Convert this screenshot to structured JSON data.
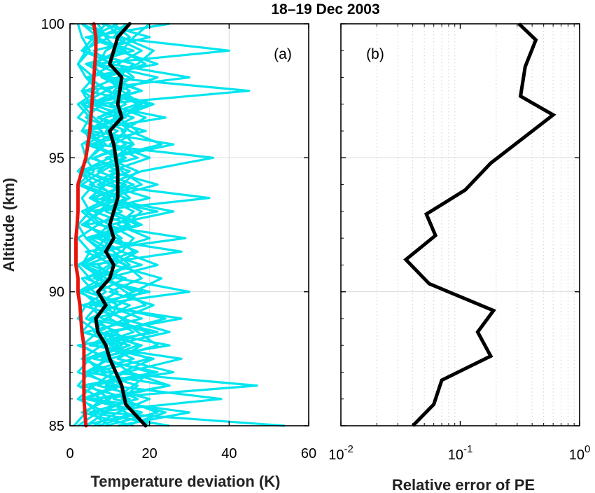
{
  "chart_data": [
    {
      "type": "line",
      "panel_label": "(a)",
      "title": "18–19 Dec 2003",
      "xlabel": "Temperature deviation (K)",
      "ylabel": "Altitude (km)",
      "xlim": [
        0,
        60
      ],
      "ylim": [
        85,
        100
      ],
      "xticks": [
        "0",
        "20",
        "40",
        "60"
      ],
      "yticks": [
        "85",
        "90",
        "95",
        "100"
      ],
      "grid": true,
      "colors": {
        "individual": "#00e5ee",
        "median": "#e8140c",
        "mean": "#000000"
      },
      "individual_profiles": [
        {
          "x": [
            3,
            18,
            6,
            25,
            4,
            10,
            2,
            22,
            8,
            5,
            30,
            12,
            3,
            9,
            4,
            15,
            6,
            20,
            9,
            2,
            14,
            5,
            4,
            12,
            3,
            18,
            8,
            6,
            40,
            10,
            3
          ],
          "y": [
            85,
            85.5,
            86,
            86.5,
            87,
            87.5,
            88,
            88.5,
            89,
            89.5,
            90,
            90.5,
            91,
            91.5,
            92,
            92.5,
            93,
            93.5,
            94,
            94.5,
            95,
            95.5,
            96,
            96.5,
            97,
            97.5,
            98,
            98.5,
            99,
            99.5,
            100
          ]
        },
        {
          "x": [
            54,
            8,
            15,
            3,
            22,
            6,
            12,
            4,
            18,
            9,
            7,
            14,
            5,
            28,
            6,
            10,
            4,
            35,
            8,
            12,
            6,
            16,
            3,
            24,
            7,
            45,
            9,
            5,
            14,
            4,
            25
          ],
          "y": [
            85,
            85.5,
            86,
            86.5,
            87,
            87.5,
            88,
            88.5,
            89,
            89.5,
            90,
            90.5,
            91,
            91.5,
            92,
            92.5,
            93,
            93.5,
            94,
            94.5,
            95,
            95.5,
            96,
            96.5,
            97,
            97.5,
            98,
            98.5,
            99,
            99.5,
            100
          ]
        },
        {
          "x": [
            12,
            30,
            5,
            47,
            9,
            4,
            25,
            7,
            14,
            3,
            20,
            6,
            11,
            4,
            29,
            7,
            13,
            5,
            9,
            18,
            36,
            6,
            12,
            4,
            8,
            3,
            30,
            10,
            6,
            20,
            8
          ],
          "y": [
            85,
            85.5,
            86,
            86.5,
            87,
            87.5,
            88,
            88.5,
            89,
            89.5,
            90,
            90.5,
            91,
            91.5,
            92,
            92.5,
            93,
            93.5,
            94,
            94.5,
            95,
            95.5,
            96,
            96.5,
            97,
            97.5,
            98,
            98.5,
            99,
            99.5,
            100
          ]
        },
        {
          "x": [
            25,
            5,
            38,
            10,
            4,
            16,
            8,
            20,
            5,
            12,
            6,
            3,
            18,
            8,
            10,
            4,
            22,
            6,
            14,
            3,
            10,
            26,
            5,
            9,
            20,
            4,
            12,
            16,
            3,
            10,
            5
          ],
          "y": [
            85,
            85.5,
            86,
            86.5,
            87,
            87.5,
            88,
            88.5,
            89,
            89.5,
            90,
            90.5,
            91,
            91.5,
            92,
            92.5,
            93,
            93.5,
            94,
            94.5,
            95,
            95.5,
            96,
            96.5,
            97,
            97.5,
            98,
            98.5,
            99,
            99.5,
            100
          ]
        },
        {
          "x": [
            6,
            12,
            20,
            7,
            14,
            28,
            5,
            11,
            24,
            8,
            16,
            9,
            4,
            13,
            7,
            18,
            11,
            5,
            16,
            7,
            12,
            5,
            19,
            7,
            14,
            10,
            4,
            22,
            12,
            7,
            15
          ],
          "y": [
            85,
            85.5,
            86,
            86.5,
            87,
            87.5,
            88,
            88.5,
            89,
            89.5,
            90,
            90.5,
            91,
            91.5,
            92,
            92.5,
            93,
            93.5,
            94,
            94.5,
            95,
            95.5,
            96,
            96.5,
            97,
            97.5,
            98,
            98.5,
            99,
            99.5,
            100
          ]
        },
        {
          "x": [
            16,
            3,
            10,
            5,
            26,
            12,
            18,
            6,
            9,
            15,
            4,
            11,
            7,
            16,
            12,
            3,
            8,
            14,
            5,
            12,
            6,
            14,
            9,
            16,
            5,
            12,
            22,
            7,
            9,
            15,
            11
          ],
          "y": [
            85,
            85.5,
            86,
            86.5,
            87,
            87.5,
            88,
            88.5,
            89,
            89.5,
            90,
            90.5,
            91,
            91.5,
            92,
            92.5,
            93,
            93.5,
            94,
            94.5,
            95,
            95.5,
            96,
            96.5,
            97,
            97.5,
            98,
            98.5,
            99,
            99.5,
            100
          ]
        },
        {
          "x": [
            9,
            22,
            13,
            17,
            6,
            20,
            10,
            25,
            13,
            21,
            10,
            18,
            14,
            9,
            20,
            12,
            16,
            9,
            22,
            10,
            20,
            11,
            17,
            12,
            21,
            9,
            16,
            12,
            18,
            11,
            14
          ],
          "y": [
            85,
            85.5,
            86,
            86.5,
            87,
            87.5,
            88,
            88.5,
            89,
            89.5,
            90,
            90.5,
            91,
            91.5,
            92,
            92.5,
            93,
            93.5,
            94,
            94.5,
            95,
            95.5,
            96,
            96.5,
            97,
            97.5,
            98,
            98.5,
            99,
            99.5,
            100
          ]
        },
        {
          "x": [
            2,
            7,
            3,
            12,
            2,
            5,
            15,
            3,
            6,
            10,
            2,
            8,
            3,
            5,
            2,
            7,
            3,
            10,
            2,
            6,
            4,
            3,
            8,
            2,
            5,
            3,
            6,
            2,
            4,
            7,
            3
          ],
          "y": [
            85,
            85.5,
            86,
            86.5,
            87,
            87.5,
            88,
            88.5,
            89,
            89.5,
            90,
            90.5,
            91,
            91.5,
            92,
            92.5,
            93,
            93.5,
            94,
            94.5,
            95,
            95.5,
            96,
            96.5,
            97,
            97.5,
            98,
            98.5,
            99,
            99.5,
            100
          ]
        },
        {
          "x": [
            20,
            14,
            9,
            25,
            15,
            10,
            22,
            17,
            13,
            8,
            16,
            23,
            11,
            17,
            9,
            14,
            18,
            11,
            13,
            17,
            9,
            23,
            15,
            11,
            18,
            13,
            9,
            19,
            13,
            16,
            20
          ],
          "y": [
            85,
            85.5,
            86,
            86.5,
            87,
            87.5,
            88,
            88.5,
            89,
            89.5,
            90,
            90.5,
            91,
            91.5,
            92,
            92.5,
            93,
            93.5,
            94,
            94.5,
            95,
            95.5,
            96,
            96.5,
            97,
            97.5,
            98,
            98.5,
            99,
            99.5,
            100
          ]
        },
        {
          "x": [
            4,
            9,
            2,
            6,
            11,
            3,
            8,
            12,
            4,
            7,
            3,
            10,
            14,
            6,
            9,
            4,
            7,
            12,
            3,
            8,
            14,
            4,
            10,
            6,
            3,
            9,
            5,
            11,
            3,
            6,
            9
          ],
          "y": [
            85,
            85.5,
            86,
            86.5,
            87,
            87.5,
            88,
            88.5,
            89,
            89.5,
            90,
            90.5,
            91,
            91.5,
            92,
            92.5,
            93,
            93.5,
            94,
            94.5,
            95,
            95.5,
            96,
            96.5,
            97,
            97.5,
            98,
            98.5,
            99,
            99.5,
            100
          ]
        },
        {
          "x": [
            10,
            5,
            17,
            9,
            13,
            21,
            6,
            16,
            10,
            12,
            18,
            7,
            15,
            11,
            5,
            17,
            9,
            15,
            11,
            4,
            17,
            10,
            14,
            7,
            17,
            11,
            15,
            6,
            12,
            9,
            7
          ],
          "y": [
            85,
            85.5,
            86,
            86.5,
            87,
            87.5,
            88,
            88.5,
            89,
            89.5,
            90,
            90.5,
            91,
            91.5,
            92,
            92.5,
            93,
            93.5,
            94,
            94.5,
            95,
            95.5,
            96,
            96.5,
            97,
            97.5,
            98,
            98.5,
            99,
            99.5,
            100
          ]
        },
        {
          "x": [
            7,
            18,
            4,
            13,
            8,
            4,
            13,
            9,
            28,
            6,
            12,
            4,
            10,
            6,
            13,
            8,
            4,
            12,
            7,
            15,
            5,
            9,
            4,
            14,
            6,
            18,
            10,
            4,
            16,
            5,
            12
          ],
          "y": [
            85,
            85.5,
            86,
            86.5,
            87,
            87.5,
            88,
            88.5,
            89,
            89.5,
            90,
            90.5,
            91,
            91.5,
            92,
            92.5,
            93,
            93.5,
            94,
            94.5,
            95,
            95.5,
            96,
            96.5,
            97,
            97.5,
            98,
            98.5,
            99,
            99.5,
            100
          ]
        },
        {
          "x": [
            14,
            24,
            11,
            16,
            20,
            8,
            17,
            11,
            6,
            19,
            14,
            9,
            22,
            13,
            16,
            10,
            26,
            8,
            18,
            13,
            11,
            16,
            13,
            19,
            10,
            15,
            8,
            17,
            21,
            13,
            9
          ],
          "y": [
            85,
            85.5,
            86,
            86.5,
            87,
            87.5,
            88,
            88.5,
            89,
            89.5,
            90,
            90.5,
            91,
            91.5,
            92,
            92.5,
            93,
            93.5,
            94,
            94.5,
            95,
            95.5,
            96,
            96.5,
            97,
            97.5,
            98,
            98.5,
            99,
            99.5,
            100
          ]
        },
        {
          "x": [
            1,
            4,
            8,
            2,
            5,
            9,
            3,
            7,
            2,
            4,
            9,
            5,
            2,
            8,
            4,
            2,
            5,
            3,
            6,
            2,
            5,
            8,
            3,
            5,
            2,
            7,
            4,
            2,
            5,
            3,
            2
          ],
          "y": [
            85,
            85.5,
            86,
            86.5,
            87,
            87.5,
            88,
            88.5,
            89,
            89.5,
            90,
            90.5,
            91,
            91.5,
            92,
            92.5,
            93,
            93.5,
            94,
            94.5,
            95,
            95.5,
            96,
            96.5,
            97,
            97.5,
            98,
            98.5,
            99,
            99.5,
            100
          ]
        }
      ],
      "series": [
        {
          "name": "",
          "color": "#e8140c",
          "x": [
            4,
            3.5,
            3.5,
            3.5,
            3,
            2.5,
            2,
            2,
            1.5,
            1.5,
            1.5,
            1.8,
            2,
            2,
            2,
            3,
            4,
            5,
            5.5,
            6,
            6.5,
            6.5,
            6
          ],
          "y": [
            85,
            86,
            87,
            88,
            88.5,
            89.5,
            90,
            90.5,
            91,
            91.5,
            92,
            92.5,
            93,
            93.5,
            94,
            94.5,
            95,
            96,
            97,
            98,
            99,
            99.5,
            100
          ]
        },
        {
          "name": "",
          "color": "#000000",
          "x": [
            19,
            14,
            13,
            10,
            9,
            7,
            6.5,
            9,
            7,
            10,
            11,
            9,
            11,
            10,
            11,
            12,
            12,
            11,
            10,
            13,
            12,
            13,
            10,
            12,
            15
          ],
          "y": [
            85,
            85.8,
            86.5,
            87.5,
            88,
            88.5,
            89,
            89.5,
            90,
            90.5,
            91,
            91.5,
            92,
            92.5,
            93,
            93.5,
            94.5,
            95.5,
            96,
            96.5,
            97,
            98,
            98.5,
            99.5,
            100
          ]
        }
      ]
    },
    {
      "type": "line",
      "panel_label": "(b)",
      "xlabel": "Relative error of PE",
      "ylabel": "",
      "xscale": "log",
      "xlim": [
        0.01,
        1
      ],
      "ylim": [
        85,
        100
      ],
      "xticks": [
        {
          "base": "10",
          "exp": "-2"
        },
        {
          "base": "10",
          "exp": "-1"
        },
        {
          "base": "10",
          "exp": "0"
        }
      ],
      "grid": true,
      "series": [
        {
          "name": "",
          "color": "#000000",
          "x": [
            0.04,
            0.06,
            0.07,
            0.18,
            0.14,
            0.19,
            0.055,
            0.035,
            0.062,
            0.052,
            0.11,
            0.18,
            0.6,
            0.32,
            0.35,
            0.43,
            0.31
          ],
          "y": [
            85,
            85.8,
            86.7,
            87.6,
            88.5,
            89.3,
            90.3,
            91.2,
            92.1,
            92.9,
            93.8,
            94.8,
            96.6,
            97.3,
            98.4,
            99.4,
            100
          ]
        }
      ]
    }
  ]
}
